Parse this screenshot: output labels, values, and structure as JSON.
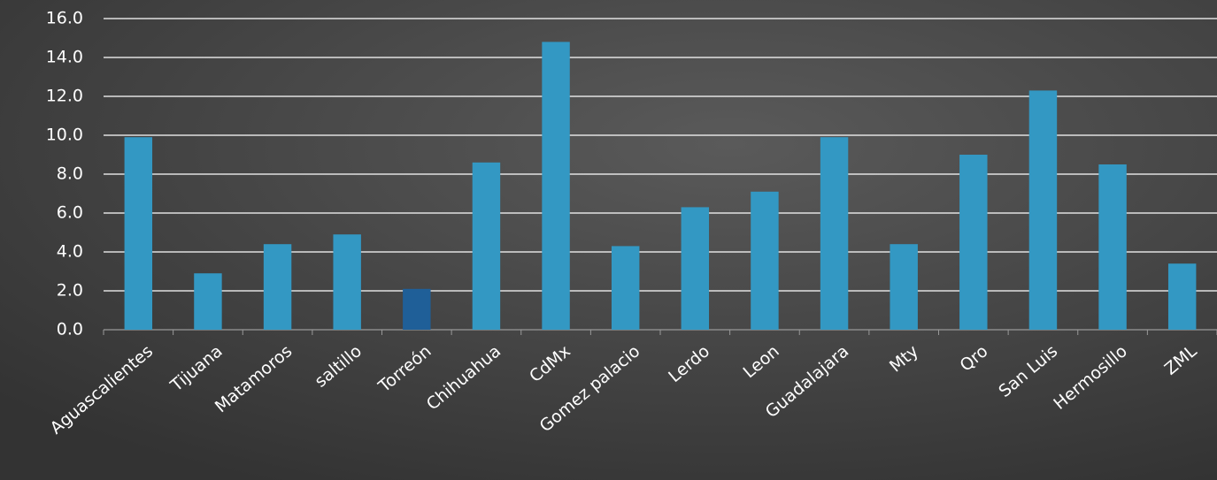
{
  "chart_data": {
    "type": "bar",
    "categories": [
      "Aguascalientes",
      "Tijuana",
      "Matamoros",
      "saltillo",
      "Torreón",
      "Chihuahua",
      "CdMx",
      "Gomez palacio",
      "Lerdo",
      "Leon",
      "Guadalajara",
      "Mty",
      "Qro",
      "San Luis",
      "Hermosillo",
      "ZML"
    ],
    "values": [
      9.9,
      2.9,
      4.4,
      4.9,
      2.1,
      8.6,
      14.8,
      4.3,
      6.3,
      7.1,
      9.9,
      4.4,
      9.0,
      12.3,
      8.5,
      3.4
    ],
    "colors": [
      "#3398c3",
      "#3398c3",
      "#3398c3",
      "#3398c3",
      "#1f5f98",
      "#3398c3",
      "#3398c3",
      "#3398c3",
      "#3398c3",
      "#3398c3",
      "#3398c3",
      "#3398c3",
      "#3398c3",
      "#3398c3",
      "#3398c3",
      "#3398c3"
    ],
    "ylim": [
      0,
      16
    ],
    "yticks": [
      {
        "value": 0,
        "label": "0.0"
      },
      {
        "value": 2,
        "label": "2.0"
      },
      {
        "value": 4,
        "label": "4.0"
      },
      {
        "value": 6,
        "label": "6.0"
      },
      {
        "value": 8,
        "label": "8.0"
      },
      {
        "value": 10,
        "label": "10.0"
      },
      {
        "value": 12,
        "label": "12.0"
      },
      {
        "value": 14,
        "label": "14.0"
      },
      {
        "value": 16,
        "label": "16.0"
      }
    ],
    "grid": true
  }
}
